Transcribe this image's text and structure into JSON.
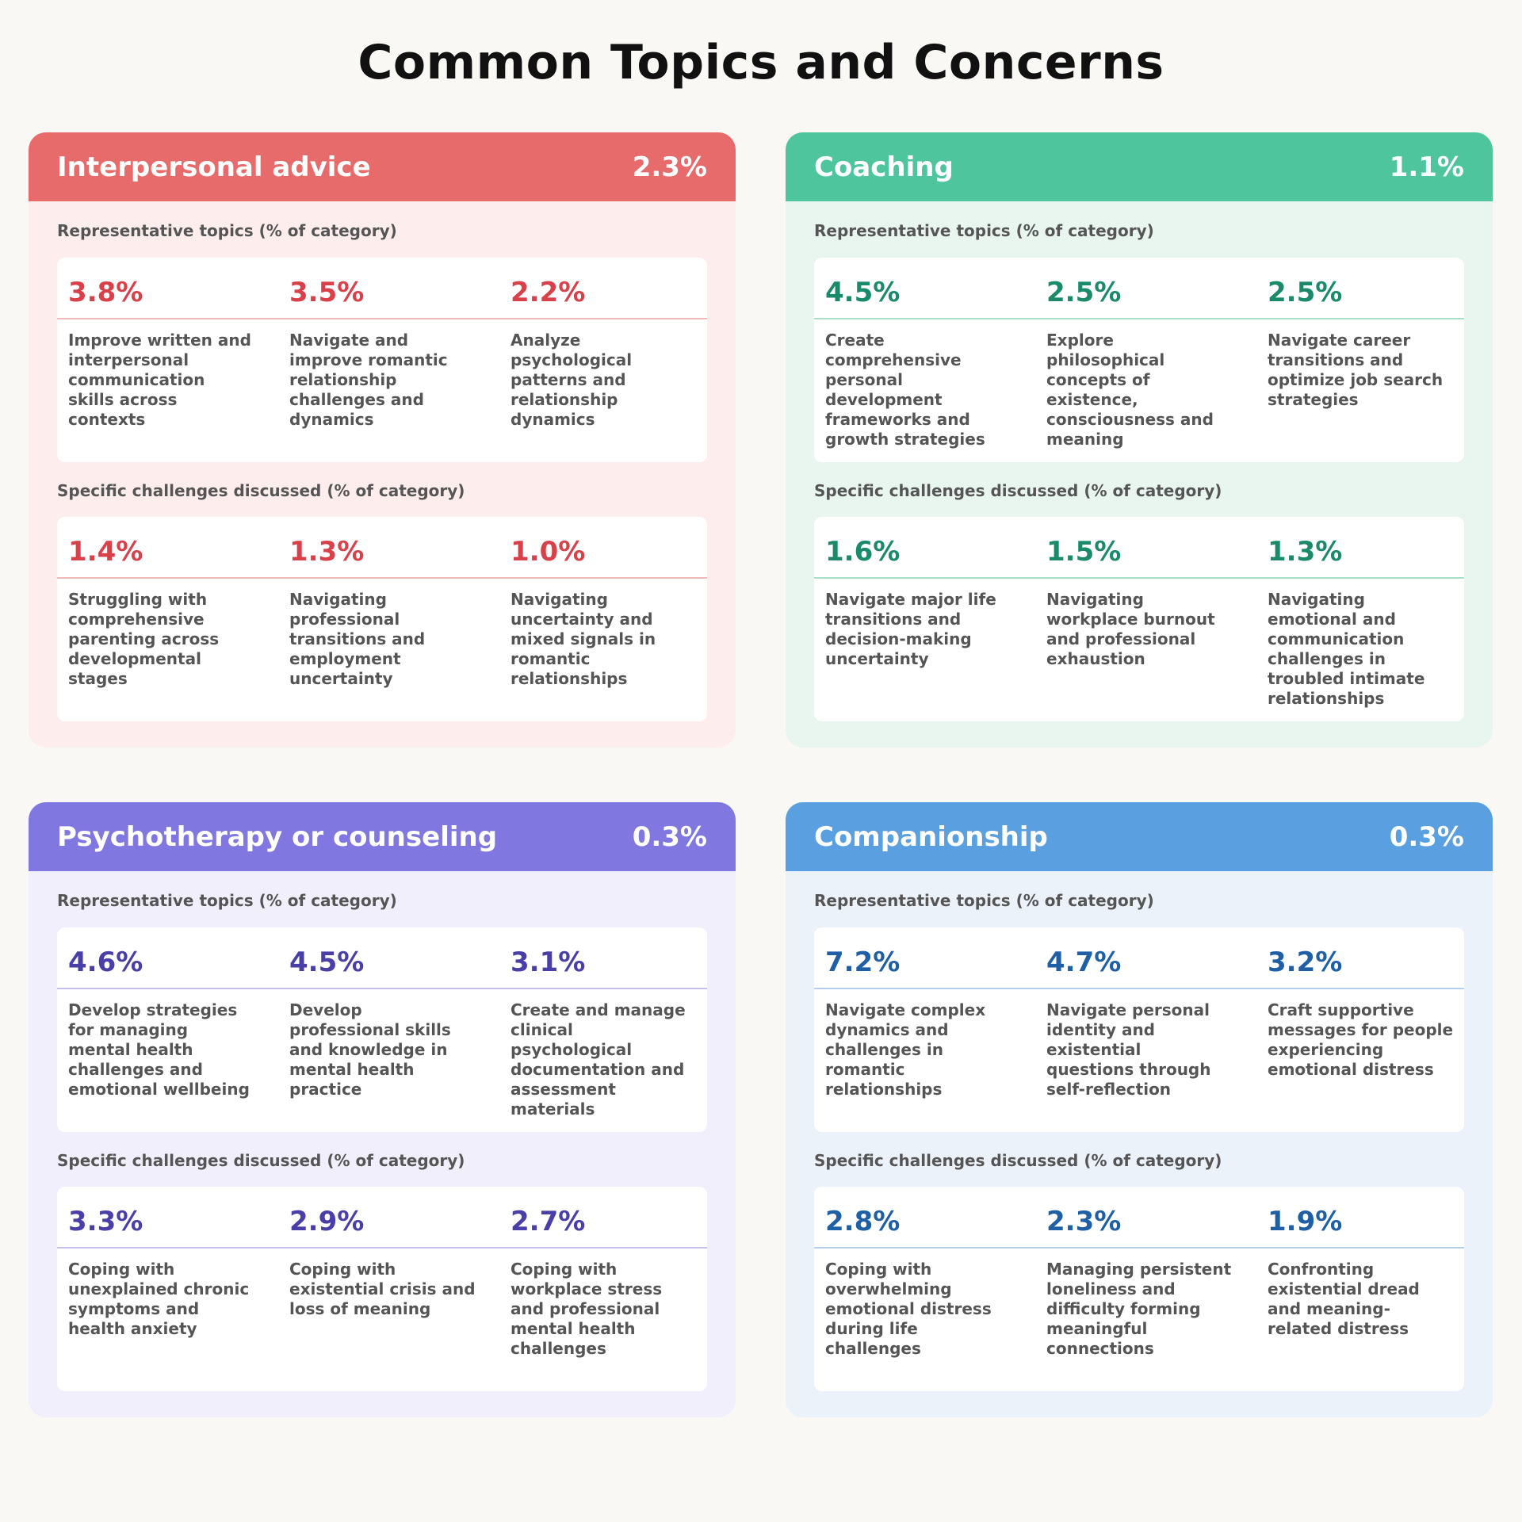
{
  "title": "Common Topics and Concerns",
  "labels": {
    "topics": "Representative topics (% of category)",
    "challenges": "Specific challenges discussed (% of category)"
  },
  "cards": [
    {
      "name": "Interpersonal advice",
      "share": "2.3%",
      "colors": {
        "header": "#e86b6b",
        "body": "#fdeeed",
        "accent": "#d9414a",
        "rule": "#f2b8b8"
      },
      "topics": [
        {
          "pct": "3.8%",
          "text": "Improve written and interpersonal communication skills across contexts"
        },
        {
          "pct": "3.5%",
          "text": "Navigate and improve romantic relationship challenges and dynamics"
        },
        {
          "pct": "2.2%",
          "text": "Analyze psychological patterns and relationship dynamics"
        }
      ],
      "challenges": [
        {
          "pct": "1.4%",
          "text": "Struggling with comprehensive parenting across developmental stages"
        },
        {
          "pct": "1.3%",
          "text": "Navigating professional transitions and employment uncertainty"
        },
        {
          "pct": "1.0%",
          "text": "Navigating uncertainty and mixed signals in romantic relationships"
        }
      ]
    },
    {
      "name": "Coaching",
      "share": "1.1%",
      "colors": {
        "header": "#4fc59e",
        "body": "#e9f6f0",
        "accent": "#1a8a6a",
        "rule": "#a8dfc9"
      },
      "topics": [
        {
          "pct": "4.5%",
          "text": "Create comprehensive personal development frameworks and growth strategies"
        },
        {
          "pct": "2.5%",
          "text": "Explore philosophical concepts of existence, consciousness and meaning"
        },
        {
          "pct": "2.5%",
          "text": "Navigate career transitions and optimize job search strategies"
        }
      ],
      "challenges": [
        {
          "pct": "1.6%",
          "text": "Navigate major life transitions and decision-making uncertainty"
        },
        {
          "pct": "1.5%",
          "text": "Navigating workplace burnout and professional exhaustion"
        },
        {
          "pct": "1.3%",
          "text": "Navigating emotional and communication challenges in troubled intimate relationships"
        }
      ]
    },
    {
      "name": "Psychotherapy or counseling",
      "share": "0.3%",
      "colors": {
        "header": "#8077e0",
        "body": "#f0effb",
        "accent": "#4a3ea8",
        "rule": "#c5c0ee"
      },
      "topics": [
        {
          "pct": "4.6%",
          "text": "Develop strategies for managing mental health challenges and emotional wellbeing"
        },
        {
          "pct": "4.5%",
          "text": "Develop professional skills and knowledge in mental health practice"
        },
        {
          "pct": "3.1%",
          "text": "Create and manage clinical psychological documentation and assessment materials"
        }
      ],
      "challenges": [
        {
          "pct": "3.3%",
          "text": "Coping with unexplained chronic symptoms and health anxiety"
        },
        {
          "pct": "2.9%",
          "text": "Coping with existential crisis and loss of meaning"
        },
        {
          "pct": "2.7%",
          "text": "Coping with workplace stress and professional mental health challenges"
        }
      ]
    },
    {
      "name": "Companionship",
      "share": "0.3%",
      "colors": {
        "header": "#5a9fe0",
        "body": "#ebf2fa",
        "accent": "#1f5fa6",
        "rule": "#b4d0ee"
      },
      "topics": [
        {
          "pct": "7.2%",
          "text": "Navigate complex dynamics and challenges in romantic relationships"
        },
        {
          "pct": "4.7%",
          "text": "Navigate personal identity and existential questions through self-reflection"
        },
        {
          "pct": "3.2%",
          "text": "Craft supportive messages for people experiencing emotional distress"
        }
      ],
      "challenges": [
        {
          "pct": "2.8%",
          "text": "Coping with overwhelming emotional distress during life challenges"
        },
        {
          "pct": "2.3%",
          "text": "Managing persistent loneliness and difficulty forming meaningful connections"
        },
        {
          "pct": "1.9%",
          "text": "Confronting existential dread and meaning-related distress"
        }
      ]
    }
  ],
  "chart_data": {
    "type": "table",
    "title": "Common Topics and Concerns",
    "categories": [
      "Interpersonal advice",
      "Coaching",
      "Psychotherapy or counseling",
      "Companionship"
    ],
    "values": [
      2.3,
      1.1,
      0.3,
      0.3
    ]
  }
}
